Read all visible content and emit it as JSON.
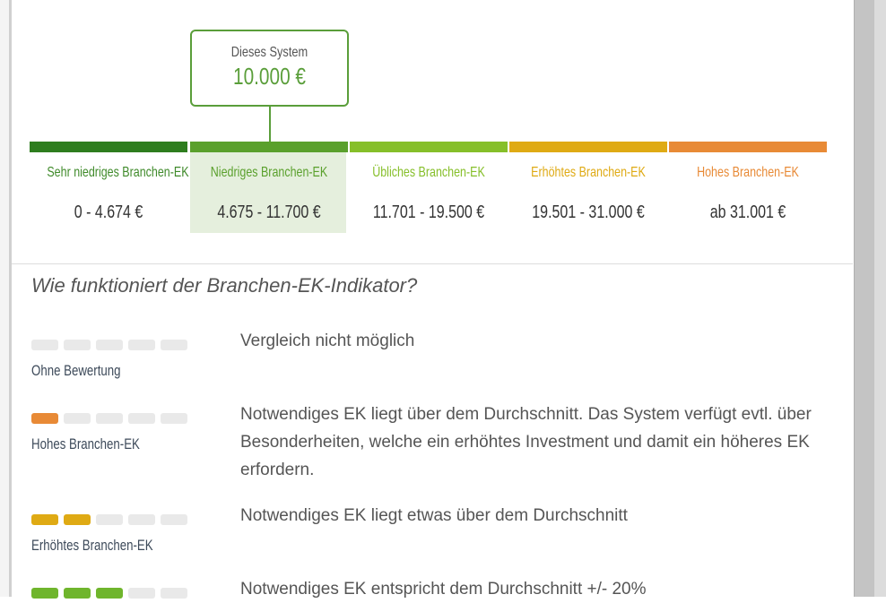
{
  "callout": {
    "title": "Dieses System",
    "value": "10.000 €"
  },
  "scale": [
    {
      "label": "Sehr niedriges Branchen-EK",
      "range": "0 - 4.674 €",
      "color": "#2e7d1e",
      "text_color": "#3f8a2a"
    },
    {
      "label": "Niedriges Branchen-EK",
      "range": "4.675 - 11.700 €",
      "color": "#5aa02c",
      "text_color": "#5aa02c",
      "selected": true
    },
    {
      "label": "Übliches Branchen-EK",
      "range": "11.701 - 19.500 €",
      "color": "#86bf2a",
      "text_color": "#86bf2a"
    },
    {
      "label": "Erhöhtes Branchen-EK",
      "range": "19.501 - 31.000 €",
      "color": "#dfaa14",
      "text_color": "#dfaa14"
    },
    {
      "label": "Hohes Branchen-EK",
      "range": "ab 31.001 €",
      "color": "#e88a36",
      "text_color": "#e88a36"
    }
  ],
  "explain": {
    "heading": "Wie funktioniert der Branchen-EK-Indikator?",
    "rows": [
      {
        "label": "Ohne Bewertung",
        "filled": 0,
        "color": "#e9e9e9",
        "text": "Vergleich nicht möglich"
      },
      {
        "label": "Hohes Branchen-EK",
        "filled": 1,
        "color": "#e88a36",
        "text": "Notwendiges EK liegt über dem Durchschnitt. Das System verfügt evtl. über Besonderheiten, welche ein erhöhtes Investment und damit ein höheres EK erfordern."
      },
      {
        "label": "Erhöhtes Branchen-EK",
        "filled": 2,
        "color": "#dfaa14",
        "text": "Notwendiges EK liegt etwas über dem Durchschnitt"
      },
      {
        "label": "",
        "filled": 3,
        "color": "#6fb52c",
        "text": "Notwendiges EK entspricht dem Durchschnitt +/- 20%"
      }
    ]
  }
}
